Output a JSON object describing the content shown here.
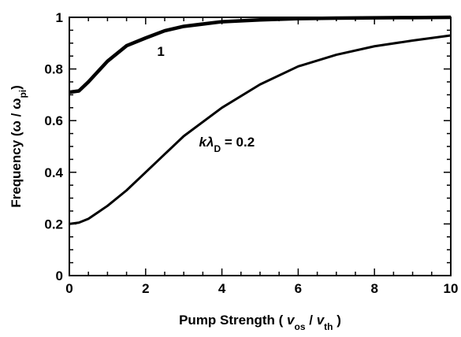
{
  "chart_data": {
    "type": "line",
    "x": [
      0,
      0.25,
      0.5,
      1,
      1.5,
      2,
      2.5,
      3,
      4,
      5,
      6,
      7,
      8,
      9,
      10
    ],
    "series": [
      {
        "color": "#000000",
        "linewidth": 4.5,
        "values": [
          0.71,
          0.715,
          0.75,
          0.83,
          0.89,
          0.92,
          0.948,
          0.965,
          0.983,
          0.99,
          0.995,
          0.997,
          0.998,
          0.999,
          1.0
        ]
      },
      {
        "color": "#000000",
        "linewidth": 3,
        "values": [
          0.2,
          0.205,
          0.22,
          0.27,
          0.33,
          0.4,
          0.47,
          0.54,
          0.65,
          0.74,
          0.81,
          0.855,
          0.888,
          0.91,
          0.93
        ]
      }
    ],
    "annotations": [
      {
        "x": 2.3,
        "y": 0.85,
        "parts": [
          {
            "text": "1",
            "style": "normal"
          }
        ]
      },
      {
        "x": 3.4,
        "y": 0.5,
        "parts": [
          {
            "text": "kλ",
            "style": "italic"
          },
          {
            "text": "D",
            "style": "sub"
          },
          {
            "text": " = 0.2",
            "style": "normal"
          }
        ]
      }
    ],
    "xlabel": [
      {
        "text": "Pump Strength  ( ",
        "style": "normal"
      },
      {
        "text": "v",
        "style": "italic"
      },
      {
        "text": "os",
        "style": "sub"
      },
      {
        "text": " / ",
        "style": "normal"
      },
      {
        "text": "v",
        "style": "italic"
      },
      {
        "text": "th",
        "style": "sub"
      },
      {
        "text": " )",
        "style": "normal"
      }
    ],
    "ylabel": [
      {
        "text": "Frequency  (ω / ω",
        "style": "normal"
      },
      {
        "text": "pi",
        "style": "sub"
      },
      {
        "text": ")",
        "style": "normal"
      }
    ],
    "xlim": [
      0,
      10
    ],
    "xticks": [
      0,
      2,
      4,
      6,
      8,
      10
    ],
    "ylim": [
      0,
      1
    ],
    "yticks": [
      0,
      0.2,
      0.4,
      0.6,
      0.8,
      1
    ],
    "minor_per_major": 4,
    "grid": false
  }
}
